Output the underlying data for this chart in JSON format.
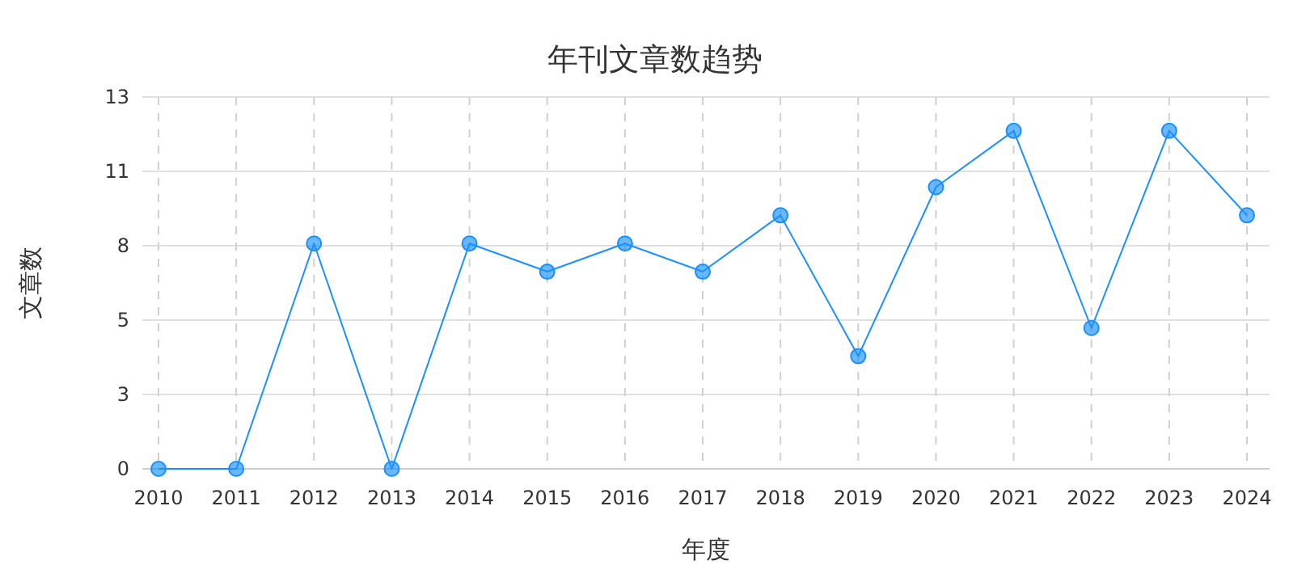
{
  "chart_data": {
    "type": "line",
    "title": "年刊文章数趋势",
    "xlabel": "年度",
    "ylabel": "文章数",
    "categories": [
      "2010",
      "2011",
      "2012",
      "2013",
      "2014",
      "2015",
      "2016",
      "2017",
      "2018",
      "2019",
      "2020",
      "2021",
      "2022",
      "2023",
      "2024"
    ],
    "series": [
      {
        "color": "#1890ff",
        "values": [
          0,
          0,
          8,
          0,
          8,
          7,
          8,
          7,
          9,
          4,
          10,
          12,
          5,
          12,
          9
        ]
      }
    ],
    "ylim": [
      0,
      13.2
    ],
    "yticks": [
      0,
      {
        "value": 2.64,
        "label": "3"
      },
      {
        "value": 5.28,
        "label": "5"
      },
      {
        "value": 7.92,
        "label": "8"
      },
      {
        "value": 10.56,
        "label": "11"
      },
      {
        "value": 13.2,
        "label": "13"
      }
    ],
    "grid": true,
    "marker": "circle",
    "line_style": "solid"
  }
}
